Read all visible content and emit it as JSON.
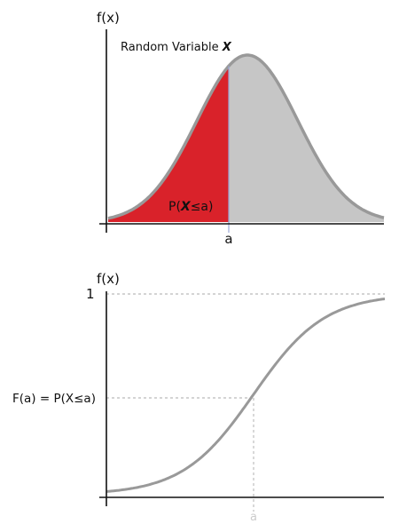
{
  "colors": {
    "axis": "#111111",
    "curve": "#999999",
    "tail_fill": "#d9222a",
    "body_fill": "#c6c6c6",
    "marker_line": "#9aa6d6",
    "guide_line": "#a8a8a8",
    "faint_label": "#cccccc"
  },
  "pdf_panel": {
    "y_label": "f(x)",
    "curve_label_prefix": "Random Variable ",
    "curve_label_var": "X",
    "area_label_prefix": "P(",
    "area_label_var": "X",
    "area_label_suffix": "≤a)",
    "x_marker_label": "a"
  },
  "cdf_panel": {
    "y_label": "f(x)",
    "y_tick_top": "1",
    "y_value_label": "F(a) = P(X≤a)",
    "x_marker_label": "a"
  },
  "chart_data": [
    {
      "type": "area",
      "description_curve": "normal density",
      "shaded_region": "x ≤ a",
      "y_axis_label": "f(x)",
      "annotations": [
        "Random Variable X",
        "P(X≤a)",
        "a"
      ]
    },
    {
      "type": "line",
      "description_curve": "cumulative distribution",
      "ylim": [
        0,
        1
      ],
      "y_ticks": [
        "1"
      ],
      "y_axis_label": "f(x)",
      "annotations": [
        "F(a) = P(X≤a)",
        "a"
      ]
    }
  ]
}
